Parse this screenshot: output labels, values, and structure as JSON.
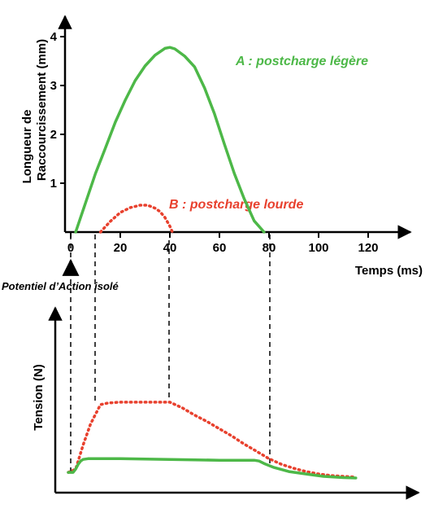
{
  "colors": {
    "green": "#4db848",
    "red": "#e8412e",
    "axis": "#000000"
  },
  "chart_data": [
    {
      "type": "line",
      "xlabel": "Temps (ms)",
      "ylabel_line1": "Longueur de",
      "ylabel_line2": "Raccourcissement (mm)",
      "xlim": [
        0,
        130
      ],
      "ylim": [
        0,
        4.2
      ],
      "x_ticks": [
        0,
        20,
        40,
        60,
        80,
        100,
        120
      ],
      "x_tick_labels": [
        "0",
        "20",
        "40",
        "60",
        "80",
        "100",
        "120"
      ],
      "y_ticks": [
        1,
        2,
        3,
        4
      ],
      "y_tick_labels": [
        "1",
        "2",
        "3",
        "4"
      ],
      "series": [
        {
          "name": "A : postcharge légère",
          "color": "green",
          "style": "solid",
          "x": [
            2,
            6,
            10,
            14,
            18,
            22,
            26,
            30,
            34,
            38,
            40,
            42,
            46,
            50,
            54,
            58,
            62,
            66,
            70,
            74,
            78
          ],
          "y": [
            0,
            0.6,
            1.2,
            1.72,
            2.25,
            2.7,
            3.1,
            3.4,
            3.62,
            3.76,
            3.78,
            3.75,
            3.6,
            3.38,
            2.95,
            2.42,
            1.8,
            1.2,
            0.68,
            0.23,
            0
          ]
        },
        {
          "name": "B : postcharge lourde",
          "color": "red",
          "style": "dotted",
          "x": [
            12,
            16,
            20,
            24,
            28,
            31,
            34,
            36,
            38,
            40,
            41
          ],
          "y": [
            0,
            0.22,
            0.4,
            0.5,
            0.55,
            0.55,
            0.49,
            0.42,
            0.3,
            0.12,
            0
          ]
        }
      ],
      "annotation_arrow_label": "Potentiel d’Action isolé"
    },
    {
      "type": "line",
      "ylabel": "Tension (N)",
      "x_scale_ms": [
        0,
        130
      ],
      "series": [
        {
          "name": "B",
          "color": "red",
          "style": "dotted",
          "x": [
            -1,
            2,
            5,
            8,
            12,
            15,
            20,
            30,
            40,
            45,
            50,
            55,
            60,
            65,
            70,
            75,
            80,
            85,
            90,
            95,
            100,
            105,
            110,
            115
          ],
          "y": [
            0.08,
            0.12,
            0.42,
            0.68,
            0.92,
            0.94,
            0.95,
            0.95,
            0.95,
            0.88,
            0.79,
            0.71,
            0.62,
            0.53,
            0.43,
            0.34,
            0.25,
            0.18,
            0.13,
            0.09,
            0.06,
            0.04,
            0.03,
            0.02
          ]
        },
        {
          "name": "A",
          "color": "green",
          "style": "solid",
          "x": [
            -1,
            1,
            2,
            3,
            4,
            5,
            7,
            10,
            20,
            40,
            60,
            70,
            74,
            76,
            78,
            82,
            88,
            95,
            102,
            110,
            115
          ],
          "y": [
            0.08,
            0.08,
            0.12,
            0.18,
            0.22,
            0.24,
            0.25,
            0.25,
            0.25,
            0.24,
            0.23,
            0.23,
            0.23,
            0.22,
            0.19,
            0.14,
            0.09,
            0.06,
            0.03,
            0.015,
            0.01
          ]
        }
      ]
    }
  ]
}
